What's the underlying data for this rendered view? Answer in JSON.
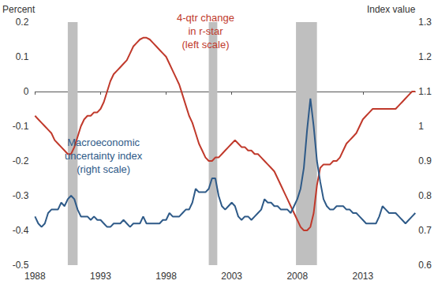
{
  "chart_data": {
    "type": "line",
    "y_label": "Percent",
    "y2_label": "Index value",
    "xlim": [
      1988,
      2017
    ],
    "xticks": [
      1988,
      1993,
      1998,
      2003,
      2008,
      2013
    ],
    "ylim": [
      -0.5,
      0.2
    ],
    "yticks": [
      -0.5,
      -0.4,
      -0.3,
      -0.2,
      -0.1,
      0,
      0.1,
      0.2
    ],
    "y2lim": [
      0.6,
      1.3
    ],
    "y2ticks": [
      0.6,
      0.7,
      0.8,
      0.9,
      1,
      1.1,
      1.2,
      1.3
    ],
    "grid": false,
    "shaded_periods": [
      [
        1990.5,
        1991.25
      ],
      [
        2001.25,
        2001.9
      ],
      [
        2007.9,
        2009.5
      ]
    ],
    "x": [
      1988,
      1988.25,
      1988.5,
      1988.75,
      1989,
      1989.25,
      1989.5,
      1989.75,
      1990,
      1990.25,
      1990.5,
      1990.75,
      1991,
      1991.25,
      1991.5,
      1991.75,
      1992,
      1992.25,
      1992.5,
      1992.75,
      1993,
      1993.25,
      1993.5,
      1993.75,
      1994,
      1994.25,
      1994.5,
      1994.75,
      1995,
      1995.25,
      1995.5,
      1995.75,
      1996,
      1996.25,
      1996.5,
      1996.75,
      1997,
      1997.25,
      1997.5,
      1997.75,
      1998,
      1998.25,
      1998.5,
      1998.75,
      1999,
      1999.25,
      1999.5,
      1999.75,
      2000,
      2000.25,
      2000.5,
      2000.75,
      2001,
      2001.25,
      2001.5,
      2001.75,
      2002,
      2002.25,
      2002.5,
      2002.75,
      2003,
      2003.25,
      2003.5,
      2003.75,
      2004,
      2004.25,
      2004.5,
      2004.75,
      2005,
      2005.25,
      2005.5,
      2005.75,
      2006,
      2006.25,
      2006.5,
      2006.75,
      2007,
      2007.25,
      2007.5,
      2007.75,
      2008,
      2008.25,
      2008.5,
      2008.75,
      2009,
      2009.25,
      2009.5,
      2009.75,
      2010,
      2010.25,
      2010.5,
      2010.75,
      2011,
      2011.25,
      2011.5,
      2011.75,
      2012,
      2012.25,
      2012.5,
      2012.75,
      2013,
      2013.25,
      2013.5,
      2013.75,
      2014,
      2014.25,
      2014.5,
      2014.75,
      2015,
      2015.25,
      2015.5,
      2015.75,
      2016,
      2016.25,
      2016.5,
      2016.75,
      2017
    ],
    "series": [
      {
        "name": "4-qtr change\nin r-star\n(left scale)",
        "color": "#c0392b",
        "axis": "y",
        "values": [
          -0.07,
          -0.08,
          -0.09,
          -0.1,
          -0.11,
          -0.12,
          -0.14,
          -0.15,
          -0.16,
          -0.17,
          -0.18,
          -0.18,
          -0.16,
          -0.13,
          -0.1,
          -0.08,
          -0.07,
          -0.07,
          -0.06,
          -0.06,
          -0.05,
          -0.03,
          0.0,
          0.03,
          0.05,
          0.06,
          0.07,
          0.08,
          0.09,
          0.11,
          0.13,
          0.14,
          0.15,
          0.155,
          0.155,
          0.15,
          0.14,
          0.13,
          0.12,
          0.11,
          0.1,
          0.08,
          0.06,
          0.04,
          0.02,
          -0.01,
          -0.04,
          -0.07,
          -0.09,
          -0.12,
          -0.15,
          -0.17,
          -0.19,
          -0.2,
          -0.2,
          -0.19,
          -0.19,
          -0.18,
          -0.17,
          -0.16,
          -0.15,
          -0.14,
          -0.15,
          -0.16,
          -0.16,
          -0.17,
          -0.17,
          -0.18,
          -0.18,
          -0.19,
          -0.2,
          -0.21,
          -0.22,
          -0.23,
          -0.25,
          -0.27,
          -0.29,
          -0.31,
          -0.33,
          -0.35,
          -0.37,
          -0.39,
          -0.4,
          -0.4,
          -0.39,
          -0.35,
          -0.27,
          -0.22,
          -0.21,
          -0.21,
          -0.21,
          -0.2,
          -0.2,
          -0.19,
          -0.17,
          -0.15,
          -0.14,
          -0.13,
          -0.12,
          -0.1,
          -0.08,
          -0.07,
          -0.06,
          -0.05,
          -0.05,
          -0.05,
          -0.05,
          -0.05,
          -0.05,
          -0.05,
          -0.05,
          -0.04,
          -0.03,
          -0.02,
          -0.01,
          0.0,
          0.0
        ]
      },
      {
        "name": "Macroeconomic\nuncertainty index\n(right scale)",
        "color": "#2e5a88",
        "axis": "y2",
        "values": [
          0.74,
          0.72,
          0.71,
          0.72,
          0.75,
          0.76,
          0.76,
          0.76,
          0.78,
          0.77,
          0.79,
          0.8,
          0.79,
          0.76,
          0.74,
          0.74,
          0.74,
          0.73,
          0.74,
          0.73,
          0.73,
          0.72,
          0.71,
          0.71,
          0.72,
          0.72,
          0.72,
          0.73,
          0.72,
          0.71,
          0.72,
          0.72,
          0.72,
          0.74,
          0.72,
          0.72,
          0.72,
          0.72,
          0.72,
          0.73,
          0.73,
          0.75,
          0.74,
          0.74,
          0.74,
          0.75,
          0.76,
          0.76,
          0.78,
          0.82,
          0.81,
          0.81,
          0.81,
          0.82,
          0.85,
          0.85,
          0.8,
          0.77,
          0.76,
          0.77,
          0.78,
          0.77,
          0.74,
          0.73,
          0.74,
          0.74,
          0.73,
          0.74,
          0.75,
          0.76,
          0.79,
          0.78,
          0.78,
          0.77,
          0.77,
          0.76,
          0.76,
          0.76,
          0.75,
          0.77,
          0.79,
          0.82,
          0.88,
          0.99,
          1.08,
          1.0,
          0.9,
          0.84,
          0.79,
          0.77,
          0.76,
          0.76,
          0.77,
          0.77,
          0.77,
          0.76,
          0.76,
          0.75,
          0.75,
          0.74,
          0.73,
          0.72,
          0.72,
          0.72,
          0.72,
          0.74,
          0.77,
          0.76,
          0.75,
          0.75,
          0.75,
          0.74,
          0.73,
          0.72,
          0.73,
          0.74,
          0.75
        ]
      }
    ]
  }
}
